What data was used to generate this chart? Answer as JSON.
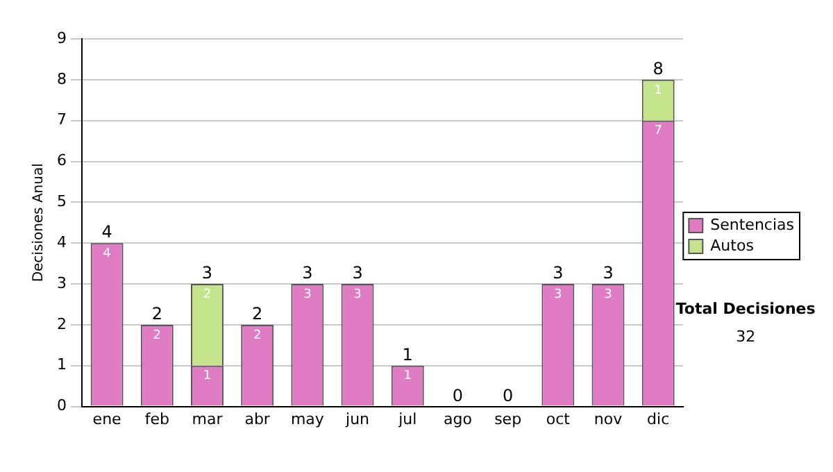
{
  "chart_data": {
    "type": "bar",
    "stacked": true,
    "categories": [
      "ene",
      "feb",
      "mar",
      "abr",
      "may",
      "jun",
      "jul",
      "ago",
      "sep",
      "oct",
      "nov",
      "dic"
    ],
    "series": [
      {
        "name": "Sentencias",
        "color": "#e07cc4",
        "values": [
          4,
          2,
          1,
          2,
          3,
          3,
          1,
          0,
          0,
          3,
          3,
          7
        ],
        "value_labels": [
          "4",
          "2",
          "1",
          "2",
          "3",
          "3",
          "1",
          null,
          null,
          "3",
          "3",
          "7"
        ]
      },
      {
        "name": "Autos",
        "color": "#c4e48c",
        "values": [
          0,
          0,
          2,
          0,
          0,
          0,
          0,
          0,
          0,
          0,
          0,
          1
        ],
        "value_labels": [
          null,
          null,
          "2",
          null,
          null,
          null,
          null,
          null,
          null,
          null,
          null,
          "1"
        ]
      }
    ],
    "totals": [
      "4",
      "2",
      "3",
      "2",
      "3",
      "3",
      "1",
      "0",
      "0",
      "3",
      "3",
      "8"
    ],
    "ylabel": "Decisiones Anual",
    "ylim": [
      0,
      9
    ],
    "yticks": [
      0,
      1,
      2,
      3,
      4,
      5,
      6,
      7,
      8,
      9
    ],
    "grid": "y",
    "legend": "right",
    "annotations": [
      "Total Decisiones",
      "32"
    ]
  }
}
